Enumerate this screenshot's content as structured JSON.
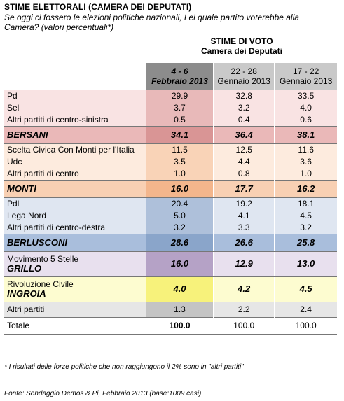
{
  "title": "STIME ELETTORALI (CAMERA DEI DEPUTATI)",
  "question": "Se oggi ci fossero le elezioni politiche nazionali, Lei quale partito voterebbe alla Camera? (valori percentuali*)",
  "header": {
    "line1": "STIME DI VOTO",
    "line2": "Camera dei Deputati",
    "cols": [
      {
        "l1": "4 - 6",
        "l2": "Febbraio 2013"
      },
      {
        "l1": "22 - 28",
        "l2": "Gennaio 2013"
      },
      {
        "l1": "17 - 22",
        "l2": "Gennaio 2013"
      }
    ]
  },
  "rows": {
    "pd": {
      "label": "Pd",
      "v": [
        "29.9",
        "32.8",
        "33.5"
      ]
    },
    "sel": {
      "label": "Sel",
      "v": [
        "3.7",
        "3.2",
        "4.0"
      ]
    },
    "altri_cs": {
      "label": "Altri partiti di centro-sinistra",
      "v": [
        "0.5",
        "0.4",
        "0.6"
      ]
    },
    "bersani": {
      "label": "BERSANI",
      "v": [
        "34.1",
        "36.4",
        "38.1"
      ]
    },
    "scelta": {
      "label": "Scelta Civica Con Monti per l'Italia",
      "v": [
        "11.5",
        "12.5",
        "11.6"
      ]
    },
    "udc": {
      "label": "Udc",
      "v": [
        "3.5",
        "4.4",
        "3.6"
      ]
    },
    "altri_c": {
      "label": "Altri partiti di centro",
      "v": [
        "1.0",
        "0.8",
        "1.0"
      ]
    },
    "monti": {
      "label": "MONTI",
      "v": [
        "16.0",
        "17.7",
        "16.2"
      ]
    },
    "pdl": {
      "label": "Pdl",
      "v": [
        "20.4",
        "19.2",
        "18.1"
      ]
    },
    "lega": {
      "label": "Lega Nord",
      "v": [
        "5.0",
        "4.1",
        "4.5"
      ]
    },
    "altri_cd": {
      "label": "Altri partiti di centro-destra",
      "v": [
        "3.2",
        "3.3",
        "3.2"
      ]
    },
    "berlusconi": {
      "label": "BERLUSCONI",
      "v": [
        "28.6",
        "26.6",
        "25.8"
      ]
    },
    "grillo": {
      "label1": "Movimento 5 Stelle",
      "label2": "GRILLO",
      "v": [
        "16.0",
        "12.9",
        "13.0"
      ]
    },
    "ingroia": {
      "label1": "Rivoluzione Civile",
      "label2": "INGROIA",
      "v": [
        "4.0",
        "4.2",
        "4.5"
      ]
    },
    "altri": {
      "label": "Altri partiti",
      "v": [
        "1.3",
        "2.2",
        "2.4"
      ]
    },
    "totale": {
      "label": "Totale",
      "v": [
        "100.0",
        "100.0",
        "100.0"
      ]
    }
  },
  "note": "* I risultati delle forze politiche che non raggiungono il 2% sono in \"altri partiti\"",
  "source": "Fonte: Sondaggio Demos & Pi, Febbraio 2013 (base:1009 casi)"
}
